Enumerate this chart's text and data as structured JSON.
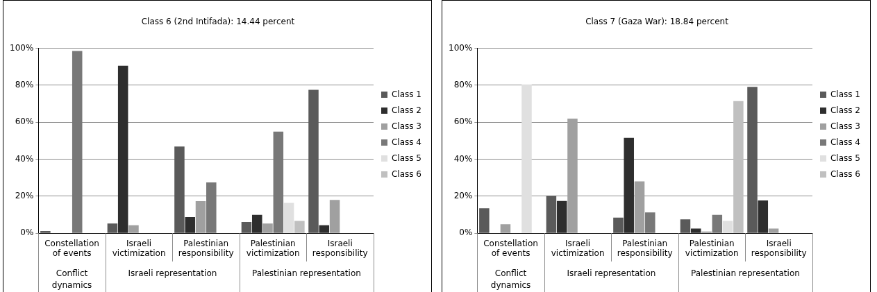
{
  "chart_data": [
    {
      "type": "bar",
      "title": "Class 6 (2nd Intifada): 14.44 percent",
      "categories": [
        "Constellation of events",
        "Israeli victimization",
        "Palestinian responsibility",
        "Palestinian victimization",
        "Israeli responsibility"
      ],
      "annotations": [
        "Conflict dynamics",
        "Israeli representation",
        "Palestinian representation"
      ],
      "series": [
        {
          "name": "Class 1",
          "color": "#5a5a5a",
          "values": [
            1.2,
            5.2,
            46.8,
            6.1,
            77.5
          ]
        },
        {
          "name": "Class 2",
          "color": "#2e2e2e",
          "values": [
            0,
            90.5,
            8.7,
            9.9,
            4.3
          ]
        },
        {
          "name": "Class 3",
          "color": "#a0a0a0",
          "values": [
            0,
            4.3,
            17.3,
            5.2,
            18
          ]
        },
        {
          "name": "Class 4",
          "color": "#787878",
          "values": [
            98.5,
            0,
            27.4,
            54.9,
            0
          ]
        },
        {
          "name": "Class 5",
          "color": "#e0e0e0",
          "values": [
            0,
            0,
            0,
            16.4,
            0
          ]
        },
        {
          "name": "Class 6",
          "color": "#c0c0c0",
          "values": [
            0,
            0,
            0,
            6.6,
            0
          ]
        }
      ],
      "ylim": [
        0,
        100
      ],
      "yticks": [
        {
          "value": 0,
          "label": "0%"
        },
        {
          "value": 20,
          "label": "20%"
        },
        {
          "value": 40,
          "label": "40%"
        },
        {
          "value": 60,
          "label": "60%"
        },
        {
          "value": 80,
          "label": "80%"
        },
        {
          "value": 100,
          "label": "100%"
        }
      ],
      "grid": "y",
      "legend": "right"
    },
    {
      "type": "bar",
      "title": "Class 7 (Gaza War): 18.84 percent",
      "categories": [
        "Constellation of events",
        "Israeli victimization",
        "Palestinian responsibility",
        "Palestinian victimization",
        "Israeli responsibility"
      ],
      "annotations": [
        "Conflict dynamics",
        "Israeli representation",
        "Palestinian representation"
      ],
      "series": [
        {
          "name": "Class 1",
          "color": "#5a5a5a",
          "values": [
            13.5,
            20.2,
            8.4,
            7.5,
            79.1
          ]
        },
        {
          "name": "Class 2",
          "color": "#2e2e2e",
          "values": [
            0,
            17.4,
            51.5,
            2.5,
            17.7
          ]
        },
        {
          "name": "Class 3",
          "color": "#a0a0a0",
          "values": [
            4.9,
            61.9,
            28,
            0.9,
            2.5
          ]
        },
        {
          "name": "Class 4",
          "color": "#787878",
          "values": [
            0,
            0,
            11.2,
            9.9,
            0
          ]
        },
        {
          "name": "Class 5",
          "color": "#e0e0e0",
          "values": [
            80.4,
            0,
            0,
            6.6,
            0
          ]
        },
        {
          "name": "Class 6",
          "color": "#c0c0c0",
          "values": [
            0,
            0,
            0,
            71.4,
            0
          ]
        }
      ],
      "ylim": [
        0,
        100
      ],
      "yticks": [
        {
          "value": 0,
          "label": "0%"
        },
        {
          "value": 20,
          "label": "20%"
        },
        {
          "value": 40,
          "label": "40%"
        },
        {
          "value": 60,
          "label": "60%"
        },
        {
          "value": 80,
          "label": "80%"
        },
        {
          "value": 100,
          "label": "100%"
        }
      ],
      "grid": "y",
      "legend": "right"
    }
  ]
}
